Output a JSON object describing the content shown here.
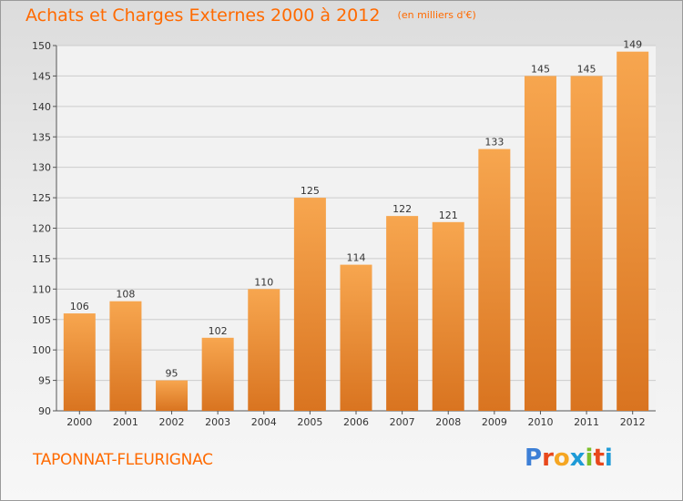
{
  "header": {
    "title": "Achats et Charges Externes 2000 à 2012",
    "subtitle": "(en milliers d'€)"
  },
  "footer": {
    "commune": "TAPONNAT-FLEURIGNAC",
    "logo_text": "Proxiti"
  },
  "colors": {
    "accent": "#ff6a00",
    "bar_top": "#f7a64f",
    "bar_bottom": "#d97420",
    "logo_letters": [
      "#3d7fd6",
      "#e8481c",
      "#f5a623",
      "#1e9bd7",
      "#7cbf2a",
      "#e8481c",
      "#1e9bd7"
    ]
  },
  "chart_data": {
    "type": "bar",
    "title": "Achats et Charges Externes 2000 à 2012",
    "subtitle": "(en milliers d'€)",
    "categories": [
      "2000",
      "2001",
      "2002",
      "2003",
      "2004",
      "2005",
      "2006",
      "2007",
      "2008",
      "2009",
      "2010",
      "2011",
      "2012"
    ],
    "values": [
      106,
      108,
      95,
      102,
      110,
      125,
      114,
      122,
      121,
      133,
      145,
      145,
      149
    ],
    "ylim": [
      90,
      150
    ],
    "yticks": [
      90,
      95,
      100,
      105,
      110,
      115,
      120,
      125,
      130,
      135,
      140,
      145,
      150
    ],
    "grid": true,
    "data_labels": true
  }
}
